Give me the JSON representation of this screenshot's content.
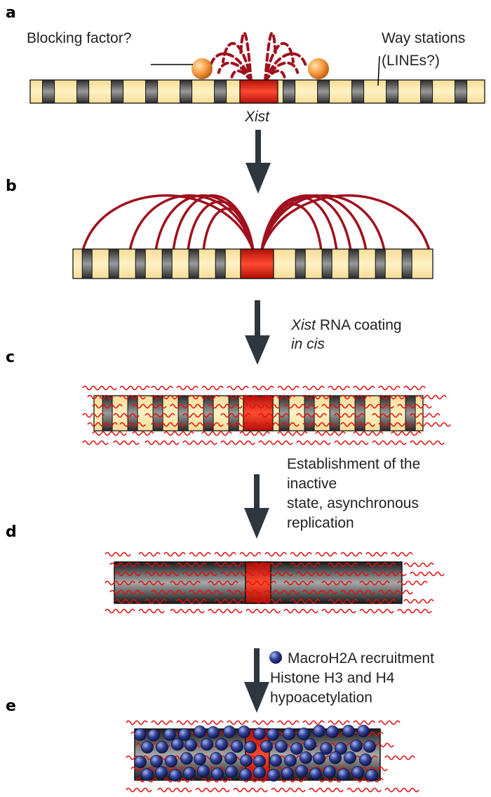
{
  "panels": [
    {
      "letter": "a"
    },
    {
      "letter": "b"
    },
    {
      "letter": "c"
    },
    {
      "letter": "d"
    },
    {
      "letter": "e"
    }
  ],
  "labels": {
    "blocking_factor": "Blocking factor?",
    "way_stations_line1": "Way stations",
    "way_stations_line2": "(LINEs?)",
    "xist": "Xist",
    "step_bc_line1_italic": "Xist",
    "step_bc_line1_rest": " RNA coating",
    "step_bc_line2": "in cis",
    "step_cd_line1": "Establishment of the",
    "step_cd_line2": "inactive",
    "step_cd_line3": "state, asynchronous",
    "step_cd_line4": "replication",
    "step_de_line1": "MacroH2A recruitment",
    "step_de_line2": "Histone H3 and H4",
    "step_de_line3": "hypoacetylation"
  },
  "icons": {
    "blocking_factor": "orange-sphere-icon",
    "macroh2a": "blue-sphere-icon",
    "arrow": "down-arrow-icon"
  },
  "colors": {
    "light_band": "#fde8a8",
    "dark_band": "#5a5a5a",
    "xist_red": "#e02a1a",
    "rna_dark_red": "#a0101e",
    "rna_red": "#e01010",
    "arrow": "#2e3640",
    "macroh2a_blue": "#2a3a8c",
    "blocking_orange": "#f08a30"
  }
}
